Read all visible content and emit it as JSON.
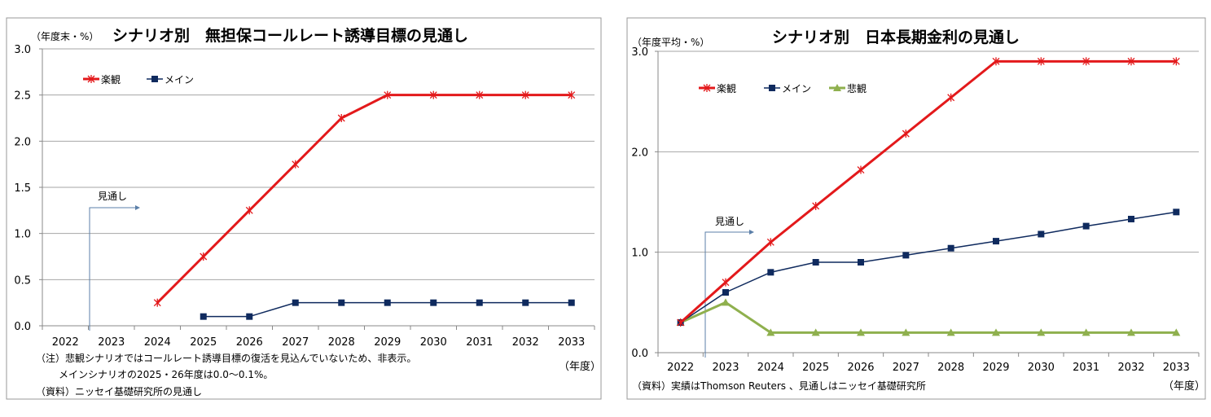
{
  "chart_data": [
    {
      "type": "line",
      "title": "シナリオ別　無担保コールレート誘導目標の見通し",
      "ylabel": "（年度末・%）",
      "xlabel": "（年度）",
      "categories": [
        "2022",
        "2023",
        "2024",
        "2025",
        "2026",
        "2027",
        "2028",
        "2029",
        "2030",
        "2031",
        "2032",
        "2033"
      ],
      "yticks": [
        "0.0",
        "0.5",
        "1.0",
        "1.5",
        "2.0",
        "2.5",
        "3.0"
      ],
      "ylim": [
        0,
        3.0
      ],
      "grid": true,
      "legend_position": "top-left",
      "forecast_label": "見通し",
      "forecast_start": "2022",
      "series": [
        {
          "name": "楽観",
          "color": "#e3191b",
          "marker": "asterisk",
          "values": [
            null,
            null,
            0.25,
            0.75,
            1.25,
            1.75,
            2.25,
            2.5,
            2.5,
            2.5,
            2.5,
            2.5
          ]
        },
        {
          "name": "メイン",
          "color": "#0f2a5e",
          "marker": "square",
          "values": [
            null,
            null,
            null,
            0.1,
            0.1,
            0.25,
            0.25,
            0.25,
            0.25,
            0.25,
            0.25,
            0.25
          ]
        }
      ],
      "notes": [
        "（注）悲観シナリオではコールレート誘導目標の復活を見込んでいないため、非表示。",
        "メインシナリオの2025・26年度は0.0～0.1%。",
        "（資料）ニッセイ基礎研究所の見通し"
      ]
    },
    {
      "type": "line",
      "title": "シナリオ別　日本長期金利の見通し",
      "ylabel": "（年度平均・%）",
      "xlabel": "（年度）",
      "categories": [
        "2022",
        "2023",
        "2024",
        "2025",
        "2026",
        "2027",
        "2028",
        "2029",
        "2030",
        "2031",
        "2032",
        "2033"
      ],
      "yticks": [
        "0.0",
        "1.0",
        "2.0",
        "3.0"
      ],
      "ylim": [
        0,
        3.0
      ],
      "grid": true,
      "legend_position": "top-left",
      "forecast_label": "見通し",
      "forecast_start": "2023",
      "series": [
        {
          "name": "楽観",
          "color": "#e3191b",
          "marker": "asterisk",
          "values": [
            0.3,
            0.7,
            1.1,
            1.46,
            1.82,
            2.18,
            2.54,
            2.9,
            2.9,
            2.9,
            2.9,
            2.9
          ]
        },
        {
          "name": "メイン",
          "color": "#0f2a5e",
          "marker": "square",
          "values": [
            0.3,
            0.6,
            0.8,
            0.9,
            0.9,
            0.97,
            1.04,
            1.11,
            1.18,
            1.26,
            1.33,
            1.4
          ]
        },
        {
          "name": "悲観",
          "color": "#8fb04e",
          "marker": "triangle",
          "values": [
            0.3,
            0.5,
            0.2,
            0.2,
            0.2,
            0.2,
            0.2,
            0.2,
            0.2,
            0.2,
            0.2,
            0.2
          ]
        }
      ],
      "notes": [
        "（資料）実績はThomson Reuters 、見通しはニッセイ基礎研究所"
      ]
    }
  ]
}
